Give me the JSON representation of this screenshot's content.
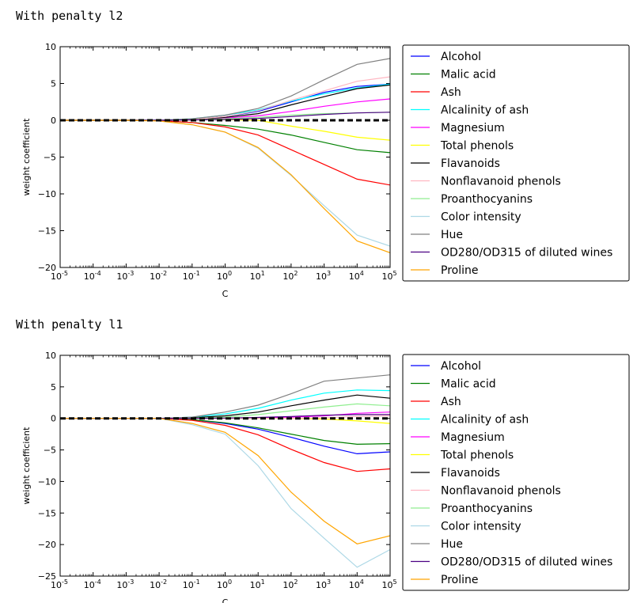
{
  "chart_data": [
    {
      "type": "line",
      "title": "With penalty l2",
      "xlabel": "C",
      "ylabel": "weight coefficient",
      "xscale": "log",
      "xlim": [
        -5,
        5
      ],
      "ylim": [
        -20,
        10
      ],
      "yticks": [
        10,
        5,
        0,
        -5,
        -10,
        -15,
        -20
      ],
      "x_exponents": [
        -5,
        -4,
        -3,
        -2,
        -1,
        0,
        1,
        2,
        3,
        4,
        5
      ],
      "legend_position": "right, outside",
      "zero_line": {
        "y": 0,
        "style": "thick black dashed"
      },
      "series": [
        {
          "name": "Alcohol",
          "color": "#0000ff",
          "values": [
            0,
            0,
            0,
            0,
            0.05,
            0.5,
            1.2,
            2.5,
            3.8,
            4.6,
            4.9
          ]
        },
        {
          "name": "Malic acid",
          "color": "#008000",
          "values": [
            0,
            0,
            0,
            -0.05,
            -0.3,
            -0.7,
            -1.2,
            -2.0,
            -3.0,
            -4.0,
            -4.4
          ]
        },
        {
          "name": "Ash",
          "color": "#ff0000",
          "values": [
            0,
            0,
            0,
            -0.05,
            -0.3,
            -0.9,
            -2.0,
            -4.0,
            -6.0,
            -8.0,
            -8.8
          ]
        },
        {
          "name": "Alcalinity of ash",
          "color": "#00ffff",
          "values": [
            0,
            0,
            0,
            0,
            0.2,
            0.7,
            1.4,
            2.6,
            3.6,
            4.4,
            4.9
          ]
        },
        {
          "name": "Magnesium",
          "color": "#ff00ff",
          "values": [
            0,
            0,
            0,
            0,
            0.1,
            0.3,
            0.6,
            1.2,
            1.9,
            2.5,
            2.9
          ]
        },
        {
          "name": "Total phenols",
          "color": "#ffff00",
          "values": [
            0,
            0,
            0,
            0,
            0.05,
            0.1,
            0,
            -0.8,
            -1.5,
            -2.3,
            -2.7
          ]
        },
        {
          "name": "Flavanoids",
          "color": "#000000",
          "values": [
            0,
            0,
            0,
            0,
            0.1,
            0.4,
            0.9,
            2.1,
            3.2,
            4.3,
            4.8
          ]
        },
        {
          "name": "Nonflavanoid phenols",
          "color": "#ffb6c1",
          "values": [
            0,
            0,
            0,
            0,
            0.1,
            0.5,
            1.3,
            2.7,
            4.0,
            5.3,
            5.9
          ]
        },
        {
          "name": "Proanthocyanins",
          "color": "#90ee90",
          "values": [
            0,
            0,
            0,
            0,
            0.05,
            0.2,
            0.4,
            0.7,
            0.9,
            1.0,
            1.1
          ]
        },
        {
          "name": "Color intensity",
          "color": "#add8e6",
          "values": [
            0,
            0,
            0,
            -0.1,
            -0.6,
            -1.6,
            -3.8,
            -7.5,
            -11.6,
            -15.6,
            -17.1
          ]
        },
        {
          "name": "Hue",
          "color": "#808080",
          "values": [
            0,
            0,
            0,
            0,
            0.2,
            0.7,
            1.6,
            3.3,
            5.5,
            7.6,
            8.4
          ]
        },
        {
          "name": "OD280/OD315 of diluted wines",
          "color": "#4b0082",
          "values": [
            0,
            0,
            0,
            0,
            0.05,
            0.1,
            0.25,
            0.5,
            0.8,
            1.0,
            1.1
          ]
        },
        {
          "name": "Proline",
          "color": "#ffa500",
          "values": [
            0,
            0,
            0,
            -0.1,
            -0.6,
            -1.6,
            -3.7,
            -7.4,
            -12.0,
            -16.4,
            -18.0
          ]
        }
      ]
    },
    {
      "type": "line",
      "title": "With penalty l1",
      "xlabel": "C",
      "ylabel": "weight coefficient",
      "xscale": "log",
      "xlim": [
        -5,
        5
      ],
      "ylim": [
        -25,
        10
      ],
      "yticks": [
        10,
        5,
        0,
        -5,
        -10,
        -15,
        -20,
        -25
      ],
      "x_exponents": [
        -5,
        -4,
        -3,
        -2,
        -1,
        0,
        1,
        2,
        3,
        4,
        5
      ],
      "legend_position": "right, outside",
      "zero_line": {
        "y": 0,
        "style": "thick black dashed"
      },
      "series": [
        {
          "name": "Alcohol",
          "color": "#0000ff",
          "values": [
            0,
            0,
            0,
            0,
            -0.2,
            -0.8,
            -1.7,
            -3.0,
            -4.4,
            -5.6,
            -5.3
          ]
        },
        {
          "name": "Malic acid",
          "color": "#008000",
          "values": [
            0,
            0,
            0,
            0,
            -0.2,
            -0.7,
            -1.5,
            -2.5,
            -3.5,
            -4.1,
            -4.0
          ]
        },
        {
          "name": "Ash",
          "color": "#ff0000",
          "values": [
            0,
            0,
            0,
            0,
            -0.3,
            -1.1,
            -2.6,
            -4.9,
            -7.0,
            -8.4,
            -8.0
          ]
        },
        {
          "name": "Alcalinity of ash",
          "color": "#00ffff",
          "values": [
            0,
            0,
            0,
            0,
            0.2,
            0.7,
            1.6,
            2.9,
            4.0,
            4.5,
            4.4
          ]
        },
        {
          "name": "Magnesium",
          "color": "#ff00ff",
          "values": [
            0,
            0,
            0,
            0,
            0,
            0,
            0.1,
            0.2,
            0.4,
            0.8,
            1.0
          ]
        },
        {
          "name": "Total phenols",
          "color": "#ffff00",
          "values": [
            0,
            0,
            0,
            0,
            0,
            0,
            0,
            0,
            -0.1,
            -0.4,
            -0.8
          ]
        },
        {
          "name": "Flavanoids",
          "color": "#000000",
          "values": [
            0,
            0,
            0,
            0,
            0.1,
            0.4,
            1.0,
            2.0,
            2.9,
            3.7,
            3.2
          ]
        },
        {
          "name": "Nonflavanoid phenols",
          "color": "#ffb6c1",
          "values": [
            0,
            0,
            0,
            0,
            0,
            0,
            0,
            0,
            0.1,
            0.3,
            0.4
          ]
        },
        {
          "name": "Proanthocyanins",
          "color": "#90ee90",
          "values": [
            0,
            0,
            0,
            0,
            0.05,
            0.2,
            0.6,
            1.2,
            1.8,
            2.3,
            2.0
          ]
        },
        {
          "name": "Color intensity",
          "color": "#add8e6",
          "values": [
            0,
            0,
            0,
            0,
            -1.0,
            -2.5,
            -7.5,
            -14.3,
            -19.0,
            -23.6,
            -20.8
          ]
        },
        {
          "name": "Hue",
          "color": "#808080",
          "values": [
            0,
            0,
            0,
            0,
            0.2,
            1.0,
            2.1,
            3.9,
            5.9,
            6.4,
            6.9
          ]
        },
        {
          "name": "OD280/OD315 of diluted wines",
          "color": "#4b0082",
          "values": [
            0,
            0,
            0,
            0,
            0,
            0.05,
            0.15,
            0.3,
            0.5,
            0.6,
            0.6
          ]
        },
        {
          "name": "Proline",
          "color": "#ffa500",
          "values": [
            0,
            0,
            0,
            0,
            -0.8,
            -2.2,
            -5.9,
            -11.7,
            -16.3,
            -19.9,
            -18.6
          ]
        }
      ]
    }
  ]
}
